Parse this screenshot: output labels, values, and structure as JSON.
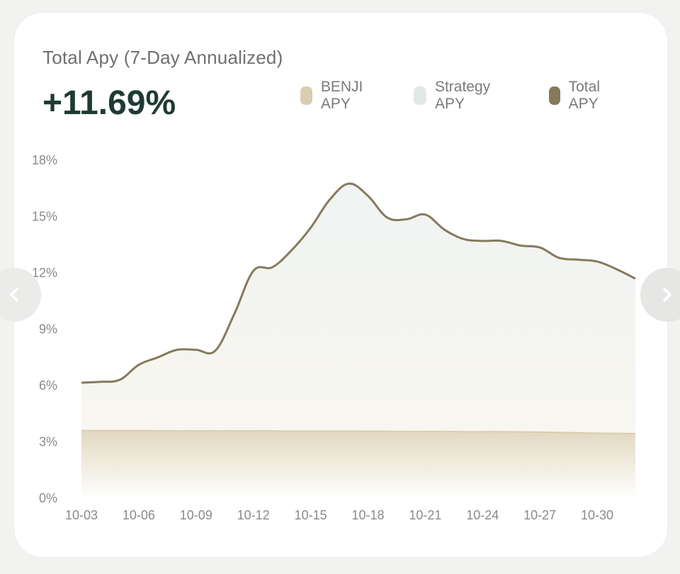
{
  "header": {
    "title": "Total Apy (7-Day Annualized)",
    "value": "+11.69%"
  },
  "legend": [
    {
      "label": "BENJI APY",
      "color": "#d8ceb0"
    },
    {
      "label": "Strategy APY",
      "color": "#e3e9e8"
    },
    {
      "label": "Total APY",
      "color": "#857a5c"
    }
  ],
  "nav": {
    "prev_icon": "chevron-left-icon",
    "next_icon": "chevron-right-icon"
  },
  "chart_data": {
    "type": "area",
    "xlabel": "",
    "ylabel": "",
    "ylim": [
      0,
      18
    ],
    "y_ticks": [
      "0%",
      "3%",
      "6%",
      "9%",
      "12%",
      "15%",
      "18%"
    ],
    "x_ticks": [
      "10-03",
      "10-06",
      "10-09",
      "10-12",
      "10-15",
      "10-18",
      "10-21",
      "10-24",
      "10-27",
      "10-30"
    ],
    "x": [
      "10-03",
      "10-04",
      "10-05",
      "10-06",
      "10-07",
      "10-08",
      "10-09",
      "10-10",
      "10-11",
      "10-12",
      "10-13",
      "10-14",
      "10-15",
      "10-16",
      "10-17",
      "10-18",
      "10-19",
      "10-20",
      "10-21",
      "10-22",
      "10-23",
      "10-24",
      "10-25",
      "10-26",
      "10-27",
      "10-28",
      "10-29",
      "10-30",
      "10-31",
      "11-01"
    ],
    "series": [
      {
        "name": "Total APY",
        "values": [
          6.15,
          6.2,
          6.3,
          7.1,
          7.5,
          7.9,
          7.9,
          7.85,
          9.8,
          12.1,
          12.3,
          13.2,
          14.4,
          15.9,
          16.75,
          16.1,
          14.95,
          14.85,
          15.1,
          14.3,
          13.8,
          13.7,
          13.7,
          13.45,
          13.35,
          12.8,
          12.7,
          12.6,
          12.2,
          11.69
        ],
        "color": "#857a5c"
      },
      {
        "name": "BENJI APY",
        "values": [
          3.6,
          3.6,
          3.6,
          3.6,
          3.59,
          3.58,
          3.58,
          3.58,
          3.58,
          3.58,
          3.58,
          3.57,
          3.57,
          3.57,
          3.57,
          3.56,
          3.56,
          3.55,
          3.55,
          3.55,
          3.54,
          3.54,
          3.54,
          3.53,
          3.52,
          3.5,
          3.48,
          3.46,
          3.45,
          3.44
        ],
        "color": "#d8ceb0"
      }
    ],
    "grid": false,
    "legend_position": "top-right"
  }
}
